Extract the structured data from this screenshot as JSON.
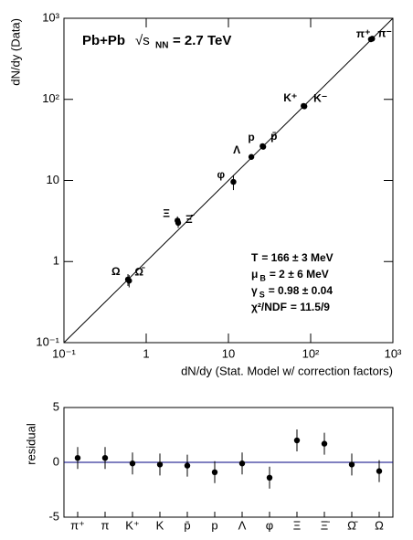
{
  "chart_data": [
    {
      "type": "scatter",
      "title": "Pb+Pb",
      "energy": {
        "symbol": "√s",
        "sub": "NN",
        "text": "= 2.7 TeV"
      },
      "x_label": "dN/dy (Stat. Model w/ correction factors)",
      "y_label": "dN/dy (Data)",
      "labels": [
        "π⁺",
        "π⁻",
        "K⁺",
        "K⁻",
        "p",
        "p̄",
        "Λ",
        "φ",
        "Ξ",
        "Ξ̄",
        "Ω",
        "Ω̄"
      ],
      "x": [
        540,
        560,
        82,
        84,
        26,
        26.5,
        19,
        11.5,
        2.4,
        2.45,
        0.6,
        0.62
      ],
      "y": [
        550,
        560,
        83,
        82,
        26.5,
        26,
        19.5,
        9.6,
        3.2,
        3.0,
        0.6,
        0.58
      ],
      "yerr": [
        0,
        0,
        0,
        0,
        0,
        0,
        0,
        2,
        0.4,
        0.4,
        0.1,
        0.1
      ],
      "color": "#000000",
      "log_x": true,
      "log_y": true,
      "xlim": [
        0.1,
        1000
      ],
      "ylim": [
        0.1,
        1000
      ],
      "xticks": [
        {
          "value": 0.1,
          "label": "10⁻¹"
        },
        1,
        10,
        {
          "value": 100,
          "label": "10²"
        },
        {
          "value": 1000,
          "label": "10³"
        }
      ],
      "yticks": [
        {
          "value": 0.1,
          "label": "10⁻¹"
        },
        1,
        10,
        {
          "value": 100,
          "label": "10²"
        },
        {
          "value": 1000,
          "label": "10³"
        }
      ],
      "annotations": [
        {
          "symbol": "T",
          "sub": "",
          "text": "= 166 ± 3 MeV"
        },
        {
          "symbol": "μ",
          "sub": "B",
          "text": "= 2 ± 6 MeV"
        },
        {
          "symbol": "γ",
          "sub": "S",
          "text": "= 0.98 ± 0.04"
        },
        {
          "symbol": "χ²/NDF",
          "sub": "",
          "text": "= 11.5/9"
        }
      ]
    },
    {
      "type": "errorbar",
      "y_label": "residual",
      "categories": [
        "π⁺",
        "π",
        "K⁺",
        "K",
        "p̄",
        "p",
        "Λ",
        "φ",
        "Ξ",
        "Ξ̄",
        "Ω̄",
        "Ω"
      ],
      "values": [
        0.4,
        0.4,
        -0.1,
        -0.2,
        -0.3,
        -0.9,
        -0.1,
        -1.4,
        2.0,
        1.7,
        -0.2,
        -0.8
      ],
      "errors": [
        1.0,
        1.0,
        1.0,
        1.0,
        1.0,
        1.0,
        1.0,
        1.0,
        1.0,
        1.0,
        1.0,
        1.0
      ],
      "color": "#000000",
      "zero_line_color": "#000080",
      "ylim": [
        -5,
        5
      ],
      "yticks": [
        -5,
        0,
        5
      ]
    }
  ]
}
